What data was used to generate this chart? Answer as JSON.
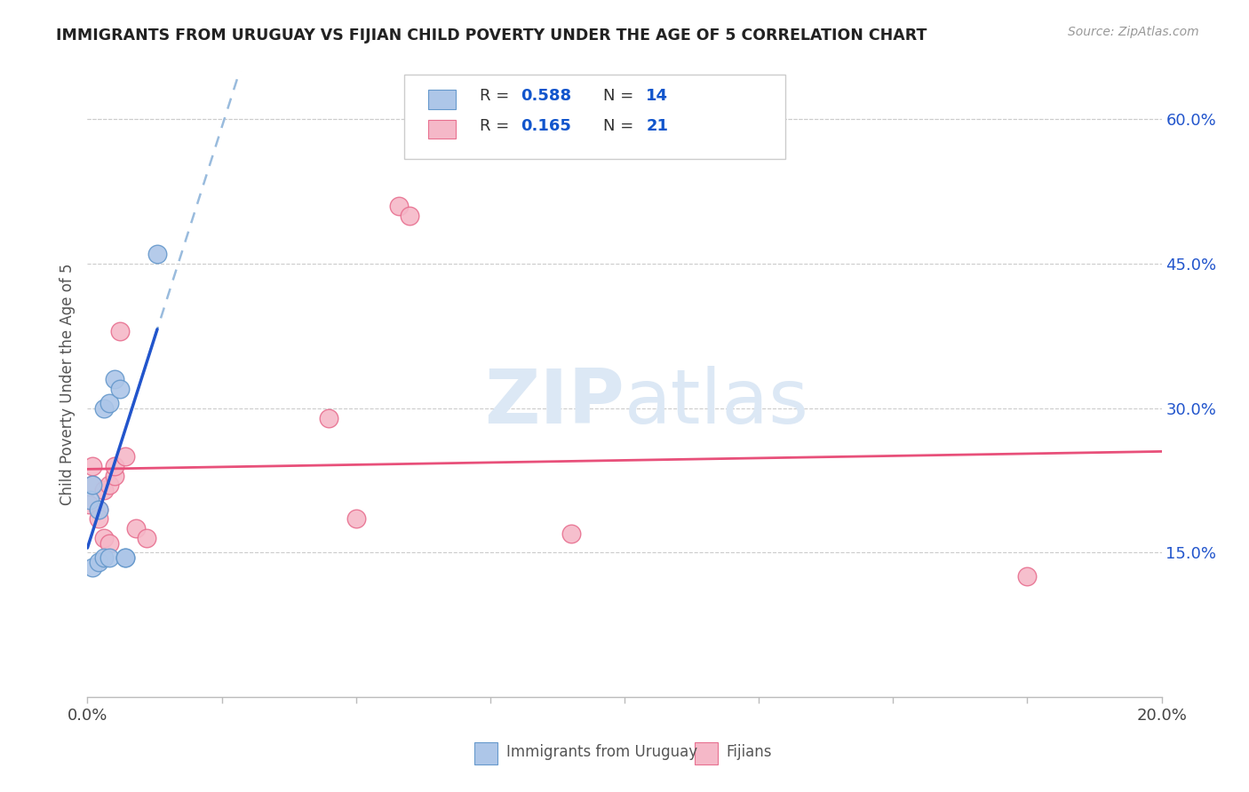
{
  "title": "IMMIGRANTS FROM URUGUAY VS FIJIAN CHILD POVERTY UNDER THE AGE OF 5 CORRELATION CHART",
  "source": "Source: ZipAtlas.com",
  "ylabel": "Child Poverty Under the Age of 5",
  "xlim": [
    0.0,
    0.2
  ],
  "ylim": [
    0.0,
    0.65
  ],
  "yticks_right": [
    0.15,
    0.3,
    0.45,
    0.6
  ],
  "ytick_right_labels": [
    "15.0%",
    "30.0%",
    "45.0%",
    "60.0%"
  ],
  "uruguay_x": [
    0.0005,
    0.001,
    0.001,
    0.002,
    0.002,
    0.003,
    0.003,
    0.004,
    0.004,
    0.005,
    0.006,
    0.007,
    0.007,
    0.013
  ],
  "uruguay_y": [
    0.205,
    0.22,
    0.135,
    0.195,
    0.14,
    0.3,
    0.145,
    0.305,
    0.145,
    0.33,
    0.32,
    0.145,
    0.145,
    0.46
  ],
  "fijian_x": [
    0.0003,
    0.001,
    0.001,
    0.002,
    0.002,
    0.003,
    0.003,
    0.004,
    0.004,
    0.005,
    0.005,
    0.006,
    0.007,
    0.009,
    0.011,
    0.045,
    0.05,
    0.058,
    0.06,
    0.09,
    0.175
  ],
  "fijian_y": [
    0.2,
    0.22,
    0.24,
    0.195,
    0.185,
    0.215,
    0.165,
    0.22,
    0.16,
    0.23,
    0.24,
    0.38,
    0.25,
    0.175,
    0.165,
    0.29,
    0.185,
    0.51,
    0.5,
    0.17,
    0.125
  ],
  "uruguay_R": 0.588,
  "uruguay_N": 14,
  "fijian_R": 0.165,
  "fijian_N": 21,
  "uruguay_color": "#adc6e8",
  "fijian_color": "#f5b8c8",
  "uruguay_edge_color": "#6699cc",
  "fijian_edge_color": "#e87090",
  "uruguay_line_color": "#2255cc",
  "fijian_line_color": "#e8507a",
  "legend_r_color": "#1155cc",
  "background_color": "#ffffff",
  "grid_color": "#cccccc",
  "watermark_color": "#dce8f5"
}
